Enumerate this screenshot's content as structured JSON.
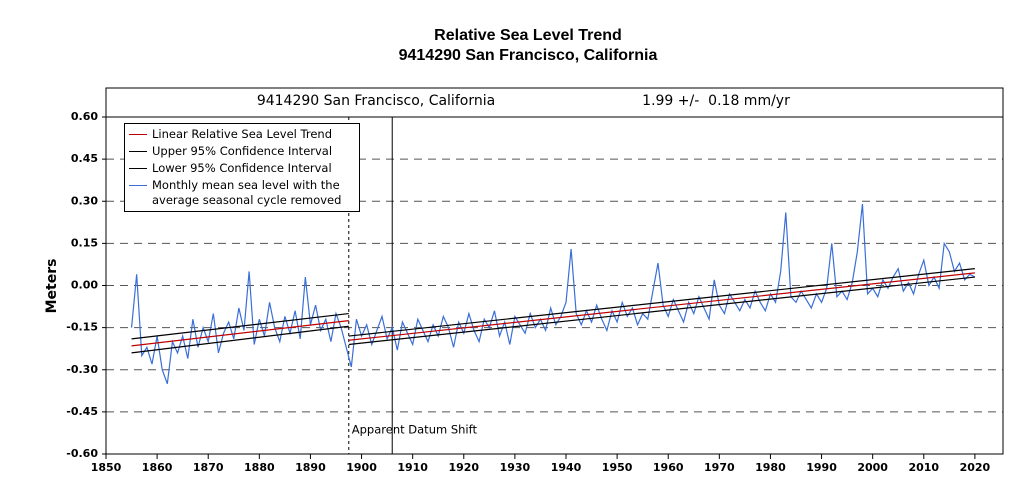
{
  "chart_data": {
    "type": "line",
    "title": "Relative Sea Level Trend",
    "subtitle": "9414290 San Francisco, California",
    "header_left": "9414290 San Francisco, California",
    "header_right": "1.99 +/-  0.18 mm/yr",
    "y_label": "Meters",
    "xlim": [
      1850,
      2025.5
    ],
    "ylim": [
      -0.6,
      0.6
    ],
    "xticks": [
      1850,
      1860,
      1870,
      1880,
      1890,
      1900,
      1910,
      1920,
      1930,
      1940,
      1950,
      1960,
      1970,
      1980,
      1990,
      2000,
      2010,
      2020
    ],
    "yticks": [
      {
        "value": 0.6,
        "label": "0.60"
      },
      {
        "value": 0.45,
        "label": "0.45"
      },
      {
        "value": 0.3,
        "label": "0.30"
      },
      {
        "value": 0.15,
        "label": "0.15"
      },
      {
        "value": 0,
        "label": "0.00"
      },
      {
        "value": -0.15,
        "label": "-0.15"
      },
      {
        "value": -0.3,
        "label": "-0.30"
      },
      {
        "value": -0.45,
        "label": "-0.45"
      },
      {
        "value": -0.6,
        "label": "-0.60"
      }
    ],
    "grid": true,
    "legend": "top-left",
    "vlines": [
      {
        "x": 1897.5,
        "style": "dotted"
      },
      {
        "x": 1906,
        "style": "solid"
      }
    ],
    "annotations": [
      {
        "text": "Apparent Datum Shift",
        "x": 1897.5
      }
    ],
    "series": [
      {
        "name": "Linear Relative Sea Level Trend",
        "color": "#c00000",
        "x": [
          1855,
          1897.5,
          1897.5,
          1897.5,
          2020
        ],
        "values": [
          -0.215,
          -0.125,
          null,
          -0.195,
          0.045
        ]
      },
      {
        "name": "Upper 95% Confidence Interval",
        "color": "#000000",
        "x": [
          1855,
          1897.5,
          1897.5,
          1897.5,
          2020
        ],
        "values": [
          -0.19,
          -0.1,
          null,
          -0.18,
          0.06
        ]
      },
      {
        "name": "Lower 95% Confidence Interval",
        "color": "#000000",
        "x": [
          1855,
          1897.5,
          1897.5,
          1897.5,
          2020
        ],
        "values": [
          -0.24,
          -0.145,
          null,
          -0.21,
          0.03
        ]
      },
      {
        "name": "Monthly mean sea level with the average seasonal cycle removed",
        "color": "#3a6fd8",
        "x": [
          1855,
          1856,
          1857,
          1858,
          1859,
          1860,
          1861,
          1862,
          1863,
          1864,
          1865,
          1866,
          1867,
          1868,
          1869,
          1870,
          1871,
          1872,
          1873,
          1874,
          1875,
          1876,
          1877,
          1878,
          1879,
          1880,
          1881,
          1882,
          1883,
          1884,
          1885,
          1886,
          1887,
          1888,
          1889,
          1890,
          1891,
          1892,
          1893,
          1894,
          1895,
          1896,
          1897,
          1898,
          1899,
          1900,
          1901,
          1902,
          1903,
          1904,
          1905,
          1906,
          1907,
          1908,
          1909,
          1910,
          1911,
          1912,
          1913,
          1914,
          1915,
          1916,
          1917,
          1918,
          1919,
          1920,
          1921,
          1922,
          1923,
          1924,
          1925,
          1926,
          1927,
          1928,
          1929,
          1930,
          1931,
          1932,
          1933,
          1934,
          1935,
          1936,
          1937,
          1938,
          1939,
          1940,
          1941,
          1942,
          1943,
          1944,
          1945,
          1946,
          1947,
          1948,
          1949,
          1950,
          1951,
          1952,
          1953,
          1954,
          1955,
          1956,
          1957,
          1958,
          1959,
          1960,
          1961,
          1962,
          1963,
          1964,
          1965,
          1966,
          1967,
          1968,
          1969,
          1970,
          1971,
          1972,
          1973,
          1974,
          1975,
          1976,
          1977,
          1978,
          1979,
          1980,
          1981,
          1982,
          1983,
          1984,
          1985,
          1986,
          1987,
          1988,
          1989,
          1990,
          1991,
          1992,
          1993,
          1994,
          1995,
          1996,
          1997,
          1998,
          1999,
          2000,
          2001,
          2002,
          2003,
          2004,
          2005,
          2006,
          2007,
          2008,
          2009,
          2010,
          2011,
          2012,
          2013,
          2014,
          2015,
          2016,
          2017,
          2018,
          2019,
          2020
        ],
        "values": [
          -0.15,
          0.04,
          -0.25,
          -0.22,
          -0.28,
          -0.18,
          -0.3,
          -0.35,
          -0.2,
          -0.24,
          -0.18,
          -0.26,
          -0.12,
          -0.22,
          -0.15,
          -0.2,
          -0.1,
          -0.24,
          -0.17,
          -0.13,
          -0.19,
          -0.08,
          -0.16,
          0.05,
          -0.21,
          -0.12,
          -0.18,
          -0.06,
          -0.15,
          -0.2,
          -0.11,
          -0.17,
          -0.09,
          -0.19,
          0.03,
          -0.14,
          -0.07,
          -0.16,
          -0.12,
          -0.2,
          -0.1,
          -0.15,
          -0.22,
          -0.29,
          -0.12,
          -0.18,
          -0.14,
          -0.21,
          -0.16,
          -0.11,
          -0.19,
          -0.15,
          -0.23,
          -0.13,
          -0.17,
          -0.21,
          -0.12,
          -0.16,
          -0.2,
          -0.14,
          -0.18,
          -0.11,
          -0.15,
          -0.22,
          -0.13,
          -0.17,
          -0.1,
          -0.16,
          -0.2,
          -0.12,
          -0.15,
          -0.09,
          -0.18,
          -0.13,
          -0.21,
          -0.11,
          -0.14,
          -0.17,
          -0.1,
          -0.15,
          -0.12,
          -0.16,
          -0.08,
          -0.14,
          -0.11,
          -0.06,
          0.13,
          -0.1,
          -0.14,
          -0.09,
          -0.13,
          -0.07,
          -0.12,
          -0.16,
          -0.09,
          -0.13,
          -0.06,
          -0.11,
          -0.08,
          -0.14,
          -0.1,
          -0.12,
          -0.02,
          0.08,
          -0.07,
          -0.11,
          -0.05,
          -0.09,
          -0.13,
          -0.06,
          -0.1,
          -0.04,
          -0.08,
          -0.12,
          0.02,
          -0.07,
          -0.1,
          -0.03,
          -0.06,
          -0.09,
          -0.05,
          -0.08,
          -0.02,
          -0.06,
          -0.09,
          -0.03,
          -0.06,
          0.05,
          0.26,
          -0.04,
          -0.06,
          -0.02,
          -0.05,
          -0.08,
          -0.03,
          -0.06,
          -0.01,
          0.15,
          -0.04,
          -0.02,
          -0.05,
          0.01,
          0.12,
          0.29,
          -0.03,
          -0.01,
          -0.04,
          0.02,
          -0.01,
          0.03,
          0.06,
          -0.02,
          0.01,
          -0.03,
          0.04,
          0.09,
          0.0,
          0.03,
          -0.01,
          0.15,
          0.12,
          0.05,
          0.08,
          0.02,
          0.04,
          0.03
        ]
      }
    ]
  }
}
